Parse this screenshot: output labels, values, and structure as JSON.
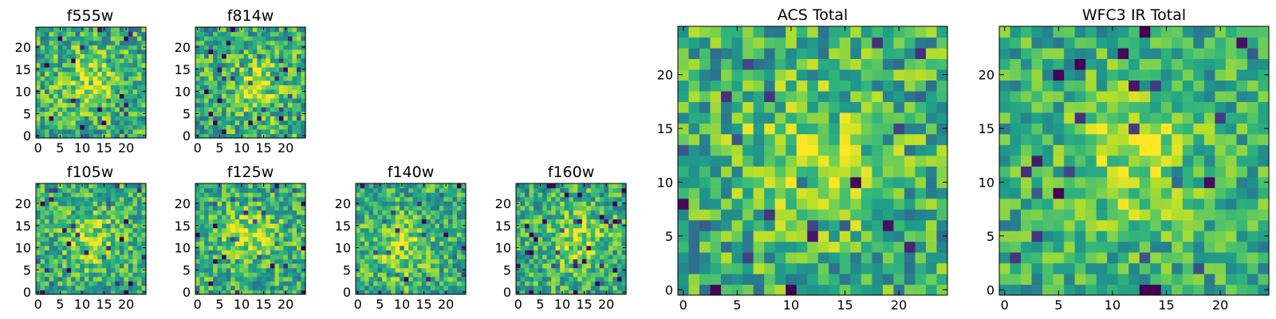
{
  "figure": {
    "colormap": "viridis",
    "colors": {
      "axis": "#000000",
      "background": "#ffffff"
    }
  },
  "chart_data": [
    {
      "type": "heatmap",
      "title": "f555w",
      "grid": false,
      "shape": [
        25,
        25
      ],
      "xlim": [
        -0.5,
        24.5
      ],
      "ylim": [
        -0.5,
        24.5
      ],
      "xticks": [
        0,
        5,
        10,
        15,
        20
      ],
      "yticks": [
        0,
        5,
        10,
        15,
        20
      ],
      "xtick_labels": [
        "0",
        "5",
        "10",
        "15",
        "20"
      ],
      "ytick_labels": [
        "0",
        "5",
        "10",
        "15",
        "20"
      ],
      "seed": 11,
      "contrast": 0.55,
      "peak": [
        12,
        12
      ]
    },
    {
      "type": "heatmap",
      "title": "f814w",
      "grid": false,
      "shape": [
        25,
        25
      ],
      "xlim": [
        -0.5,
        24.5
      ],
      "ylim": [
        -0.5,
        24.5
      ],
      "xticks": [
        0,
        5,
        10,
        15,
        20
      ],
      "yticks": [
        0,
        5,
        10,
        15,
        20
      ],
      "xtick_labels": [
        "0",
        "5",
        "10",
        "15",
        "20"
      ],
      "ytick_labels": [
        "0",
        "5",
        "10",
        "15",
        "20"
      ],
      "seed": 23,
      "contrast": 0.55,
      "peak": [
        13,
        11
      ]
    },
    {
      "type": "heatmap",
      "title": "f105w",
      "grid": false,
      "shape": [
        25,
        25
      ],
      "xlim": [
        -0.5,
        24.5
      ],
      "ylim": [
        -0.5,
        24.5
      ],
      "xticks": [
        0,
        5,
        10,
        15,
        20
      ],
      "yticks": [
        0,
        5,
        10,
        15,
        20
      ],
      "xtick_labels": [
        "0",
        "5",
        "10",
        "15",
        "20"
      ],
      "ytick_labels": [
        "0",
        "5",
        "10",
        "15",
        "20"
      ],
      "seed": 37,
      "contrast": 0.5,
      "peak": [
        12,
        12
      ]
    },
    {
      "type": "heatmap",
      "title": "f125w",
      "grid": false,
      "shape": [
        25,
        25
      ],
      "xlim": [
        -0.5,
        24.5
      ],
      "ylim": [
        -0.5,
        24.5
      ],
      "xticks": [
        0,
        5,
        10,
        15,
        20
      ],
      "yticks": [
        0,
        5,
        10,
        15,
        20
      ],
      "xtick_labels": [
        "0",
        "5",
        "10",
        "15",
        "20"
      ],
      "ytick_labels": [
        "0",
        "5",
        "10",
        "15",
        "20"
      ],
      "seed": 41,
      "contrast": 0.5,
      "peak": [
        12,
        13
      ]
    },
    {
      "type": "heatmap",
      "title": "f140w",
      "grid": false,
      "shape": [
        25,
        25
      ],
      "xlim": [
        -0.5,
        24.5
      ],
      "ylim": [
        -0.5,
        24.5
      ],
      "xticks": [
        0,
        5,
        10,
        15,
        20
      ],
      "yticks": [
        0,
        5,
        10,
        15,
        20
      ],
      "xtick_labels": [
        "0",
        "5",
        "10",
        "15",
        "20"
      ],
      "ytick_labels": [
        "0",
        "5",
        "10",
        "15",
        "20"
      ],
      "seed": 53,
      "contrast": 0.5,
      "peak": [
        10,
        10
      ]
    },
    {
      "type": "heatmap",
      "title": "f160w",
      "grid": false,
      "shape": [
        25,
        25
      ],
      "xlim": [
        -0.5,
        24.5
      ],
      "ylim": [
        -0.5,
        24.5
      ],
      "xticks": [
        0,
        5,
        10,
        15,
        20
      ],
      "yticks": [
        0,
        5,
        10,
        15,
        20
      ],
      "xtick_labels": [
        "0",
        "5",
        "10",
        "15",
        "20"
      ],
      "ytick_labels": [
        "0",
        "5",
        "10",
        "15",
        "20"
      ],
      "seed": 67,
      "contrast": 0.5,
      "peak": [
        13,
        12
      ]
    },
    {
      "type": "heatmap",
      "title": "ACS Total",
      "grid": false,
      "shape": [
        25,
        25
      ],
      "xlim": [
        -0.5,
        24.5
      ],
      "ylim": [
        -0.5,
        24.5
      ],
      "xticks": [
        0,
        5,
        10,
        15,
        20
      ],
      "yticks": [
        0,
        5,
        10,
        15,
        20
      ],
      "xtick_labels": [
        "0",
        "5",
        "10",
        "15",
        "20"
      ],
      "ytick_labels": [
        "0",
        "5",
        "10",
        "15",
        "20"
      ],
      "seed": 79,
      "contrast": 0.55,
      "peak": [
        12,
        12
      ]
    },
    {
      "type": "heatmap",
      "title": "WFC3 IR Total",
      "grid": false,
      "shape": [
        25,
        25
      ],
      "xlim": [
        -0.5,
        24.5
      ],
      "ylim": [
        -0.5,
        24.5
      ],
      "xticks": [
        0,
        5,
        10,
        15,
        20
      ],
      "yticks": [
        0,
        5,
        10,
        15,
        20
      ],
      "xtick_labels": [
        "0",
        "5",
        "10",
        "15",
        "20"
      ],
      "ytick_labels": [
        "0",
        "5",
        "10",
        "15",
        "20"
      ],
      "seed": 97,
      "contrast": 0.45,
      "peak": [
        12,
        12
      ]
    }
  ]
}
